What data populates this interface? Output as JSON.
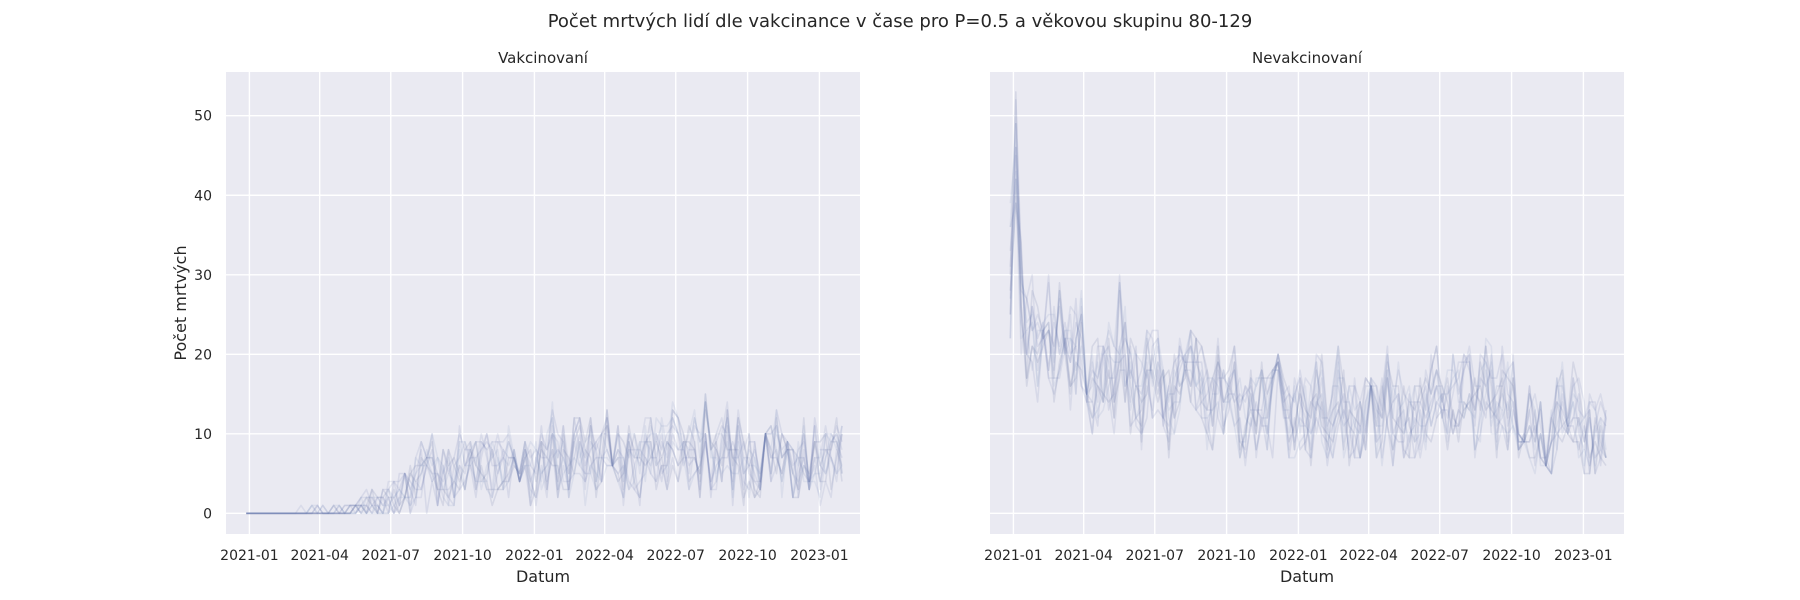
{
  "chart_data": {
    "type": "line",
    "title": "Počet mrtvých lidí dle vakcinance v čase pro P=0.5 a věkovou skupinu 80-129",
    "x_ticks": [
      "2021-01",
      "2021-04",
      "2021-07",
      "2021-10",
      "2022-01",
      "2022-04",
      "2022-07",
      "2022-10",
      "2023-01"
    ],
    "x_range": [
      "2020-12-02",
      "2023-02-22"
    ],
    "y_ticks": [
      0,
      10,
      20,
      30,
      40,
      50
    ],
    "y_range": [
      -2.6,
      55.5
    ],
    "grid": true,
    "panels": [
      {
        "title": "Vakcinovaní",
        "xlabel": "Datum",
        "ylabel": "Počet mrtvých",
        "series_count": 12,
        "profile": {
          "x": [
            "2020-12-28",
            "2021-03-01",
            "2021-05-10",
            "2021-06-14",
            "2021-07-05",
            "2021-07-26",
            "2021-08-16",
            "2021-09-13",
            "2021-10-11",
            "2021-11-08",
            "2021-12-06",
            "2022-01-03",
            "2022-01-24",
            "2022-02-14",
            "2022-03-14",
            "2022-04-11",
            "2022-05-09",
            "2022-06-06",
            "2022-07-04",
            "2022-08-01",
            "2022-08-29",
            "2022-09-26",
            "2022-10-24",
            "2022-11-21",
            "2022-12-19",
            "2023-01-16",
            "2023-01-30"
          ],
          "y": [
            0,
            0,
            0.3,
            1,
            2,
            3.5,
            5,
            6,
            6,
            6.5,
            7,
            7.5,
            8,
            7,
            7,
            7.5,
            6.5,
            7,
            8,
            8.5,
            8,
            7.5,
            8,
            7.5,
            7,
            6.5,
            6
          ]
        },
        "peak_range": [
          -2.5,
          9
        ],
        "noise": 0.32
      },
      {
        "title": "Nevakcinovaní",
        "xlabel": "Datum",
        "ylabel": "",
        "series_count": 12,
        "profile": {
          "x": [
            "2020-12-28",
            "2021-01-04",
            "2021-01-11",
            "2021-01-18",
            "2021-02-01",
            "2021-02-22",
            "2021-03-15",
            "2021-04-05",
            "2021-05-03",
            "2021-05-24",
            "2021-06-21",
            "2021-07-19",
            "2021-08-16",
            "2021-09-13",
            "2021-10-11",
            "2021-11-08",
            "2021-12-06",
            "2022-01-03",
            "2022-01-31",
            "2022-02-28",
            "2022-03-28",
            "2022-04-25",
            "2022-05-23",
            "2022-06-20",
            "2022-07-18",
            "2022-08-15",
            "2022-09-12",
            "2022-10-10",
            "2022-11-07",
            "2022-12-05",
            "2023-01-02",
            "2023-01-30"
          ],
          "y": [
            24,
            38,
            28,
            22,
            21,
            19,
            20,
            19,
            18,
            20,
            16,
            15,
            14.5,
            14,
            13.5,
            14,
            13,
            12.5,
            13,
            13,
            12.5,
            13,
            12,
            13,
            14,
            14.5,
            14,
            13,
            12.5,
            11.5,
            11,
            10
          ]
        },
        "peak_range": [
          -5,
          15
        ],
        "noise": 0.22
      }
    ]
  }
}
